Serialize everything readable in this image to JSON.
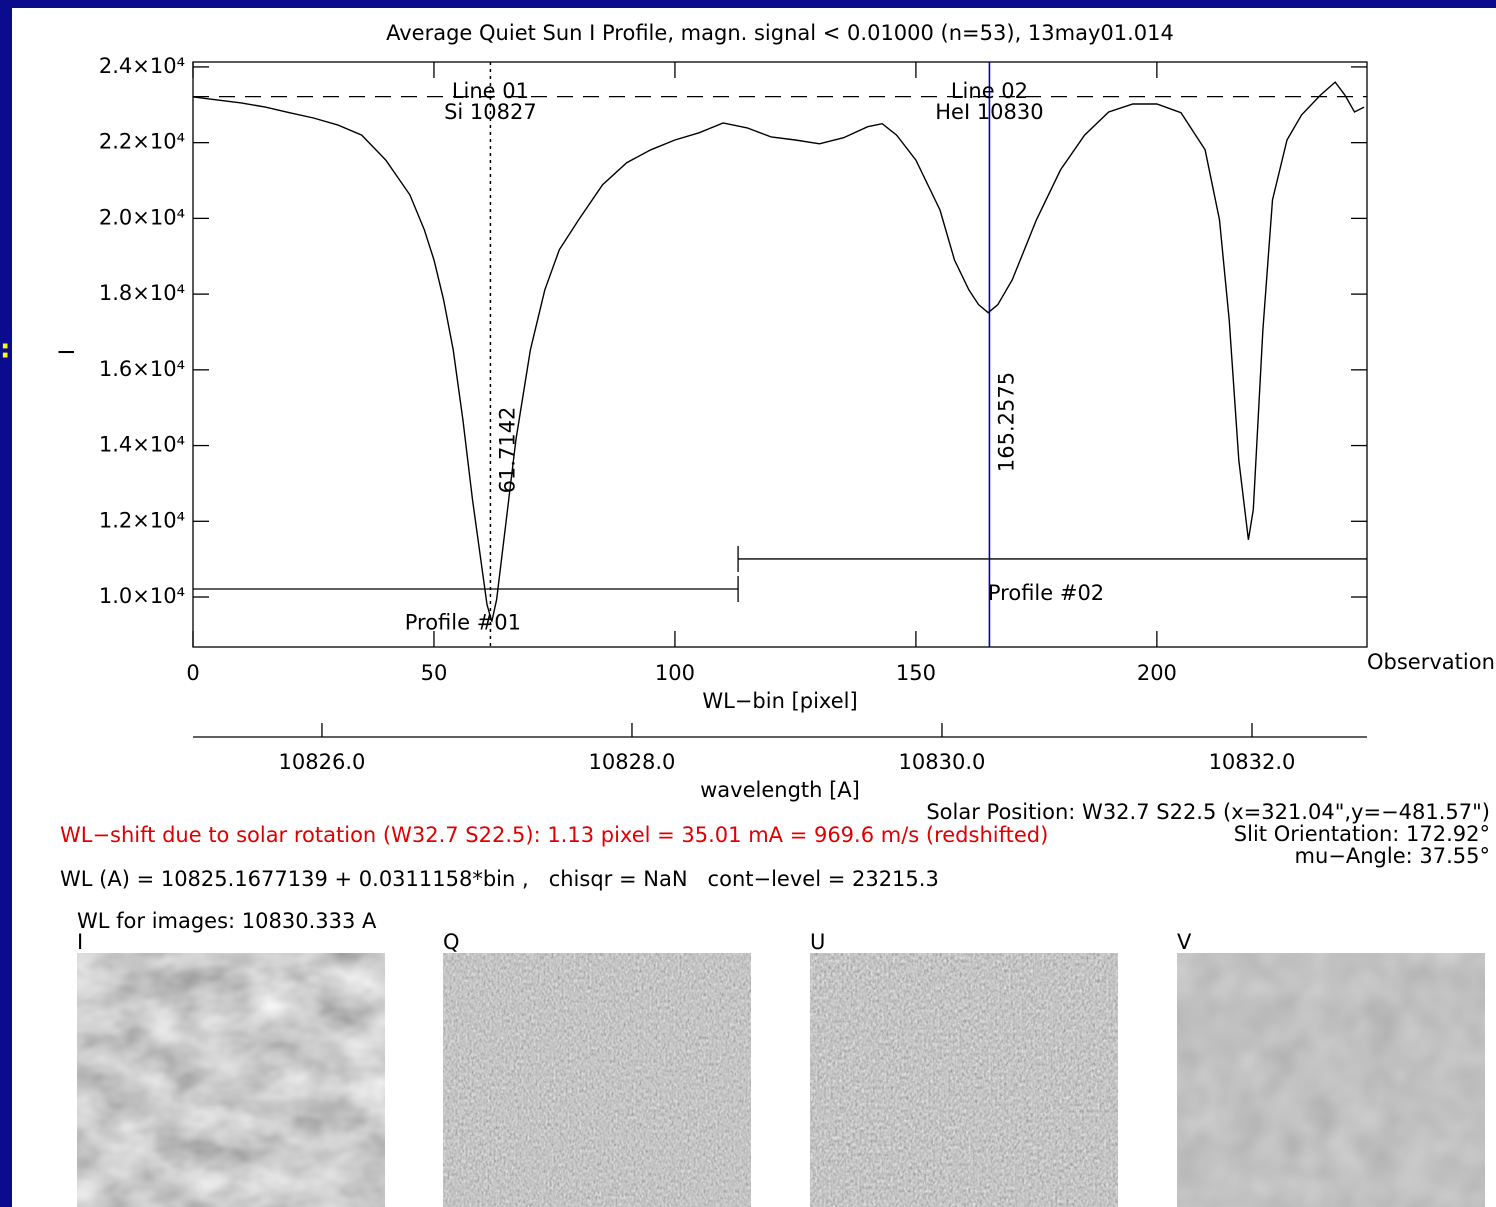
{
  "chart_data": {
    "type": "line",
    "title": "Average Quiet Sun I Profile, magn. signal < 0.01000 (n=53), 13may01.014",
    "xlabel": "WL−bin [pixel]",
    "ylabel": "I",
    "right_label": "Observation",
    "color": "#000000",
    "x": [
      0,
      5,
      10,
      15,
      20,
      25,
      30,
      35,
      40,
      45,
      48,
      50,
      52,
      54,
      56,
      58,
      60,
      61,
      62,
      63,
      65,
      67,
      70,
      73,
      76,
      80,
      85,
      90,
      95,
      100,
      105,
      110,
      115,
      120,
      125,
      130,
      135,
      140,
      143,
      146,
      150,
      155,
      158,
      161,
      163,
      165,
      167,
      170,
      175,
      180,
      185,
      190,
      195,
      200,
      205,
      210,
      213,
      215,
      217,
      219,
      220,
      222,
      224,
      227,
      230,
      234,
      237,
      239,
      241,
      243
    ],
    "values": [
      23208,
      23130,
      23050,
      22940,
      22790,
      22650,
      22470,
      22200,
      21540,
      20620,
      19700,
      18900,
      17850,
      16530,
      14680,
      12570,
      10720,
      9800,
      9350,
      9930,
      12040,
      14150,
      16530,
      18110,
      19170,
      19960,
      20890,
      21470,
      21810,
      22070,
      22260,
      22520,
      22390,
      22150,
      22070,
      21970,
      22130,
      22420,
      22500,
      22200,
      21540,
      20220,
      18900,
      18110,
      17720,
      17510,
      17720,
      18380,
      19960,
      21280,
      22200,
      22810,
      23020,
      23020,
      22790,
      21810,
      19960,
      17320,
      13620,
      11510,
      12310,
      17060,
      20490,
      22070,
      22730,
      23260,
      23600,
      23260,
      22810,
      22940
    ],
    "xlim": [
      0,
      243.6
    ],
    "ylim": [
      8680,
      24130
    ],
    "xticks": [
      0,
      50,
      100,
      150,
      200
    ],
    "yticks": [
      {
        "value": 10000,
        "label": "1.0×10⁴"
      },
      {
        "value": 12000,
        "label": "1.2×10⁴"
      },
      {
        "value": 14000,
        "label": "1.4×10⁴"
      },
      {
        "value": 16000,
        "label": "1.6×10⁴"
      },
      {
        "value": 18000,
        "label": "1.8×10⁴"
      },
      {
        "value": 20000,
        "label": "2.0×10⁴"
      },
      {
        "value": 22000,
        "label": "2.2×10⁴"
      },
      {
        "value": 24000,
        "label": "2.4×10⁴"
      }
    ],
    "x2label": "wavelength [A]",
    "x2lim": [
      10825.168,
      10832.742
    ],
    "x2ticks": [
      {
        "value": 10826,
        "label": "10826.0"
      },
      {
        "value": 10828,
        "label": "10828.0"
      },
      {
        "value": 10830,
        "label": "10830.0"
      },
      {
        "value": 10832,
        "label": "10832.0"
      }
    ],
    "hline": 23215.3,
    "vlines": [
      {
        "x": 61.7142,
        "line": "Line 01",
        "species": "Si 10827",
        "color": "#000000",
        "style": "dotted"
      },
      {
        "x": 165.2575,
        "line": "Line 02",
        "species": "HeI 10830",
        "color": "#0000c0",
        "style": "solid"
      }
    ],
    "profiles": [
      {
        "label": "Profile #01",
        "x": [
          0,
          113.1
        ],
        "y": 10212,
        "label_x": 56,
        "label_y": 9300
      },
      {
        "label": "Profile #02",
        "x": [
          113.1,
          243.6
        ],
        "y": 11006,
        "label_x": 177,
        "label_y": 10080
      }
    ]
  },
  "info": {
    "shift": "WL−shift due to solar rotation (W32.7 S22.5): 1.13 pixel = 35.01 mA = 969.6 m/s (redshifted)",
    "position": "Solar Position: W32.7 S22.5 (x=321.04\",y=−481.57\")",
    "slit": "Slit Orientation: 172.92°",
    "mu": "mu−Angle: 37.55°",
    "formula": "WL (A) = 10825.1677139 + 0.0311158*bin ,   chisqr = NaN   cont−level = 23215.3"
  },
  "images": {
    "title": "WL for images: 10830.333 A",
    "panels": [
      "I",
      "Q",
      "U",
      "V"
    ]
  },
  "side_mark": ":"
}
